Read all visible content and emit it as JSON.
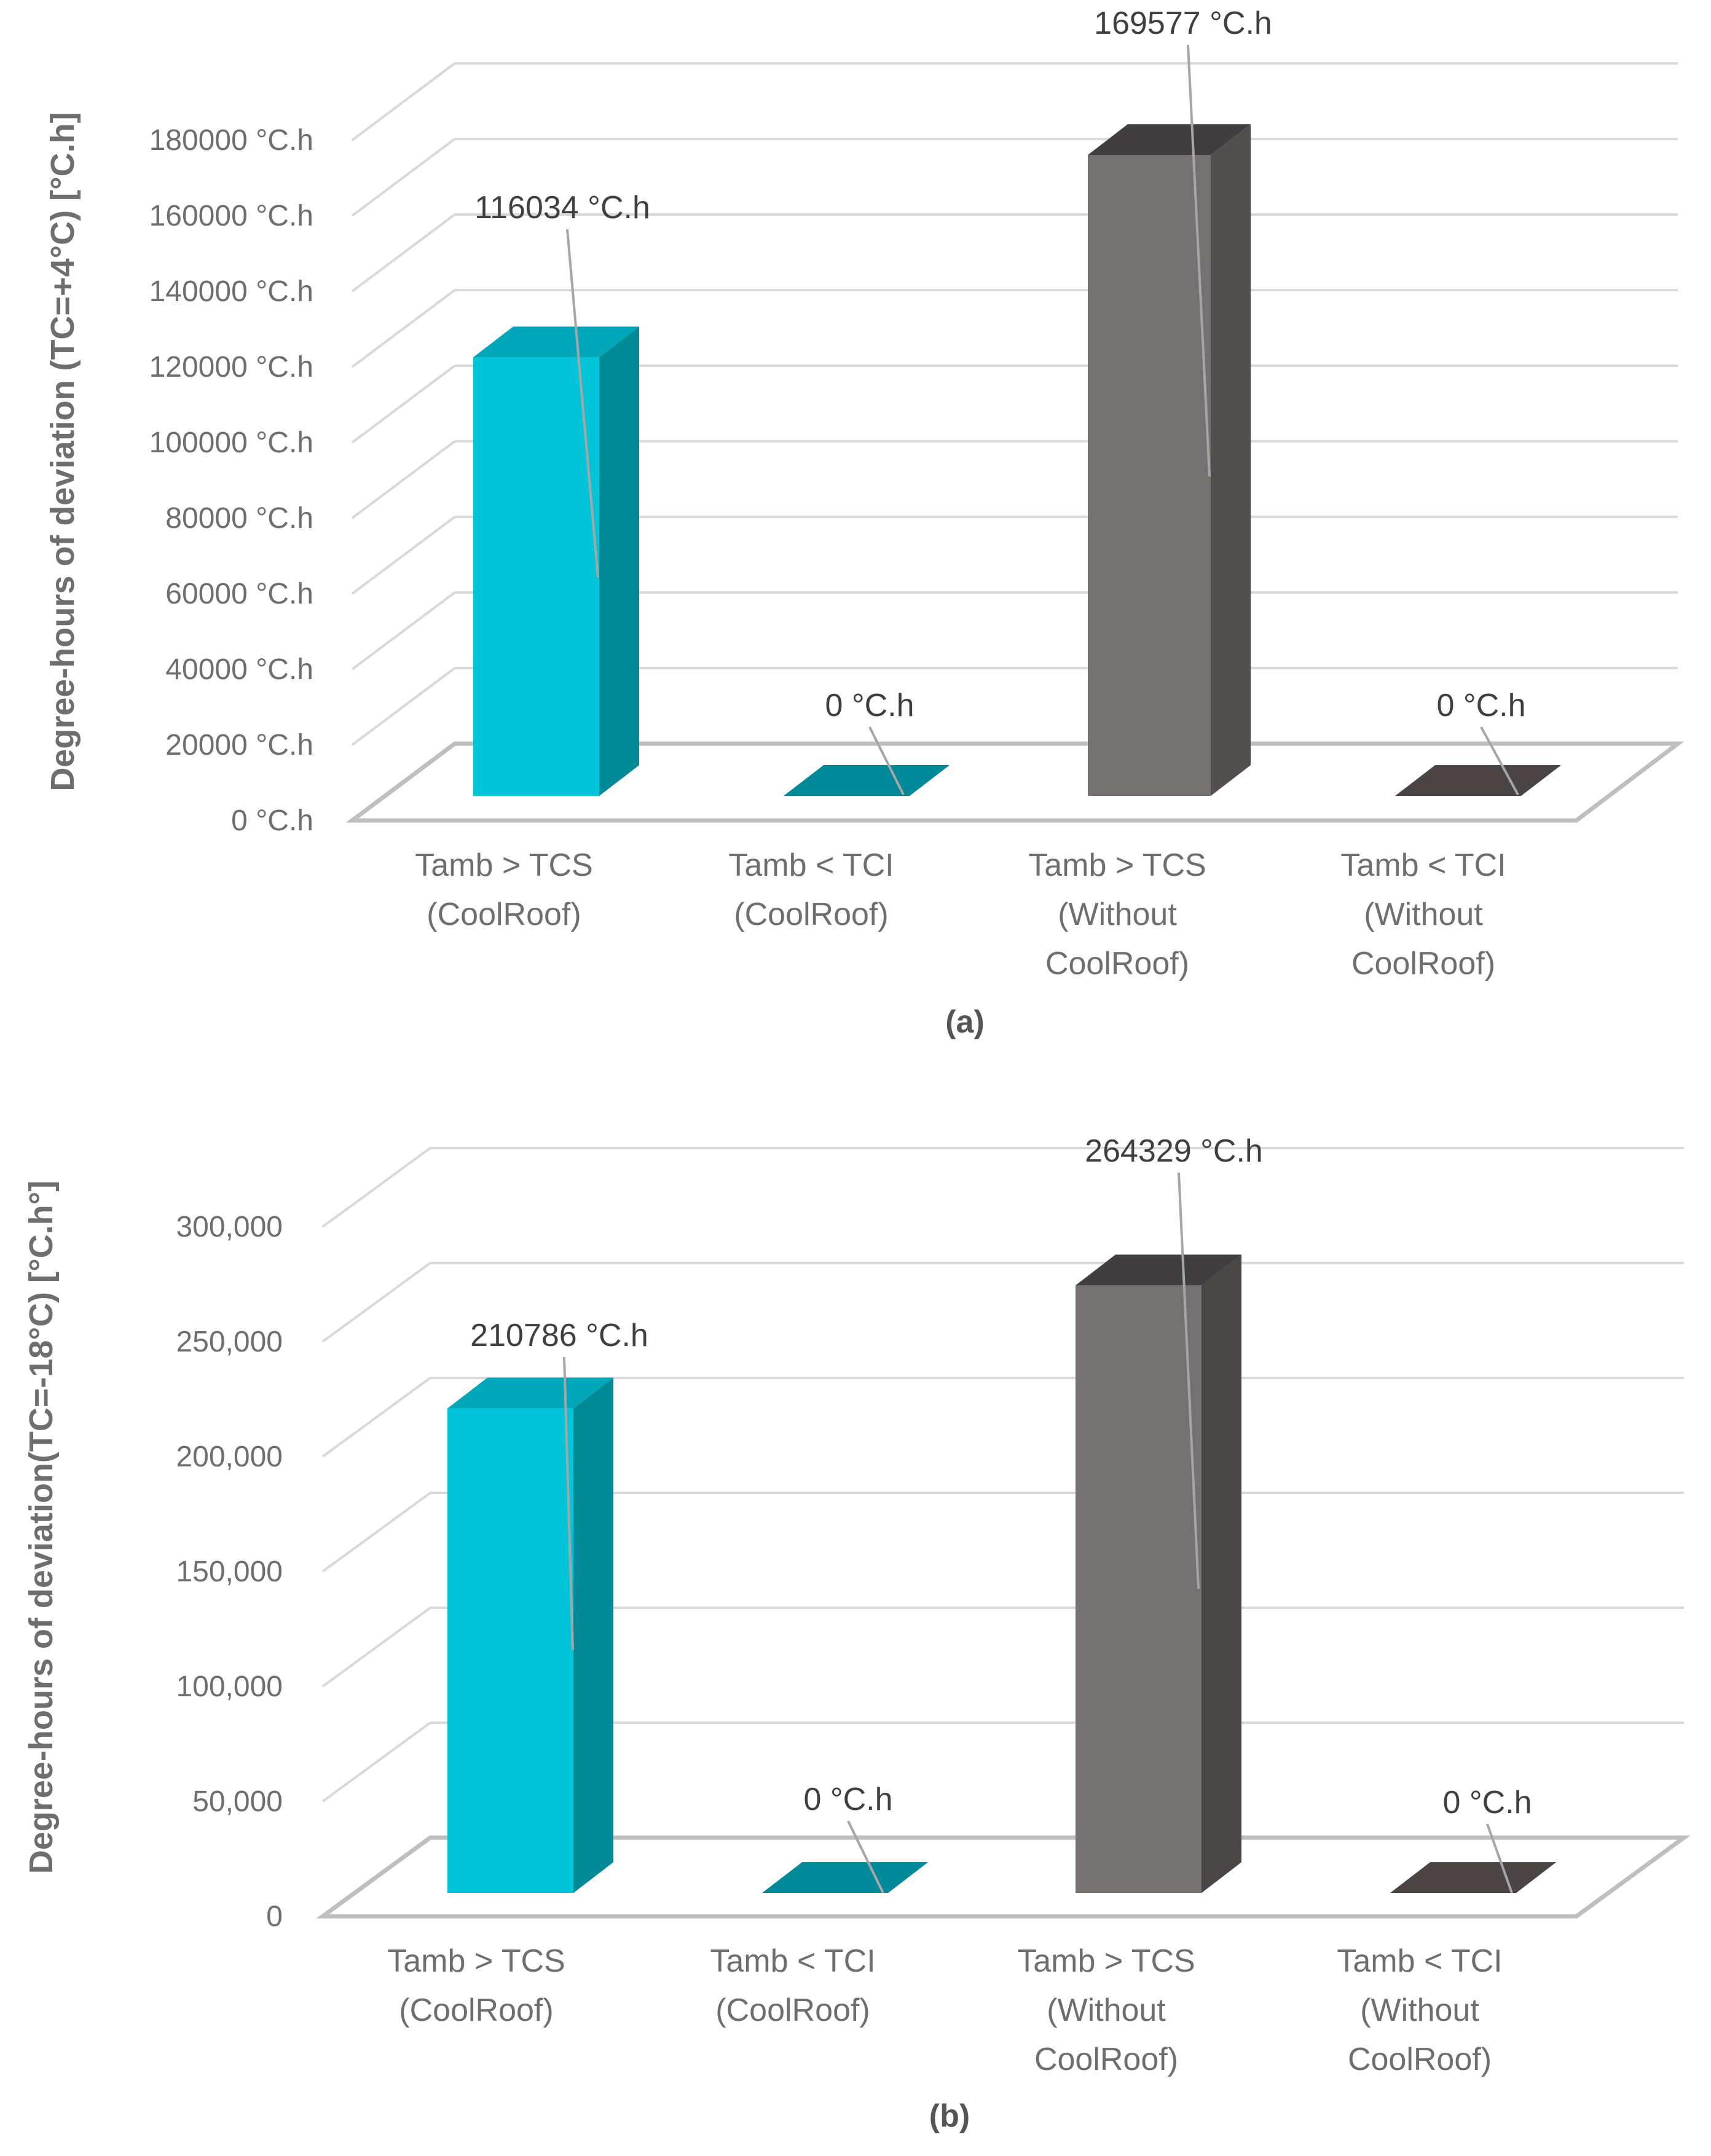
{
  "chart_data": [
    {
      "type": "bar",
      "panel_label": "(a)",
      "ylabel": "Degree-hours of deviation (TC=+4°C) [°C.h]",
      "xlabel": "",
      "ylim": [
        0,
        180000
      ],
      "y_ticks": [
        "0 °C.h",
        "20000 °C.h",
        "40000 °C.h",
        "60000 °C.h",
        "80000 °C.h",
        "100000 °C.h",
        "120000 °C.h",
        "140000 °C.h",
        "160000 °C.h",
        "180000 °C.h"
      ],
      "categories": [
        [
          "Tamb > TCS",
          "(CoolRoof)"
        ],
        [
          "Tamb < TCI",
          "(CoolRoof)"
        ],
        [
          "Tamb > TCS",
          "(Without",
          "CoolRoof)"
        ],
        [
          "Tamb < TCI",
          "(Without",
          "CoolRoof)"
        ]
      ],
      "values": [
        116034,
        0,
        169577,
        0
      ],
      "data_labels": [
        "116034 °C.h",
        "0 °C.h",
        "169577 °C.h",
        "0 °C.h"
      ],
      "colors": [
        "#00c4d8",
        "#008a99",
        "#757170",
        "#4a4544"
      ],
      "grid": true
    },
    {
      "type": "bar",
      "panel_label": "(b)",
      "ylabel": "Degree-hours of deviation(TC=-18°C) [°C.h°]",
      "xlabel": "",
      "ylim": [
        0,
        300000
      ],
      "y_ticks": [
        "0",
        "50,000",
        "100,000",
        "150,000",
        "200,000",
        "250,000",
        "300,000"
      ],
      "categories": [
        [
          "Tamb > TCS",
          "(CoolRoof)"
        ],
        [
          "Tamb < TCI",
          "(CoolRoof)"
        ],
        [
          "Tamb > TCS",
          "(Without",
          "CoolRoof)"
        ],
        [
          "Tamb < TCI",
          "(Without",
          "CoolRoof)"
        ]
      ],
      "values": [
        210786,
        0,
        264329,
        0
      ],
      "data_labels": [
        "210786 °C.h",
        "0 °C.h",
        "264329 °C.h",
        "0 °C.h"
      ],
      "colors": [
        "#00c4d8",
        "#008a99",
        "#757170",
        "#4a4544"
      ],
      "grid": true
    }
  ]
}
